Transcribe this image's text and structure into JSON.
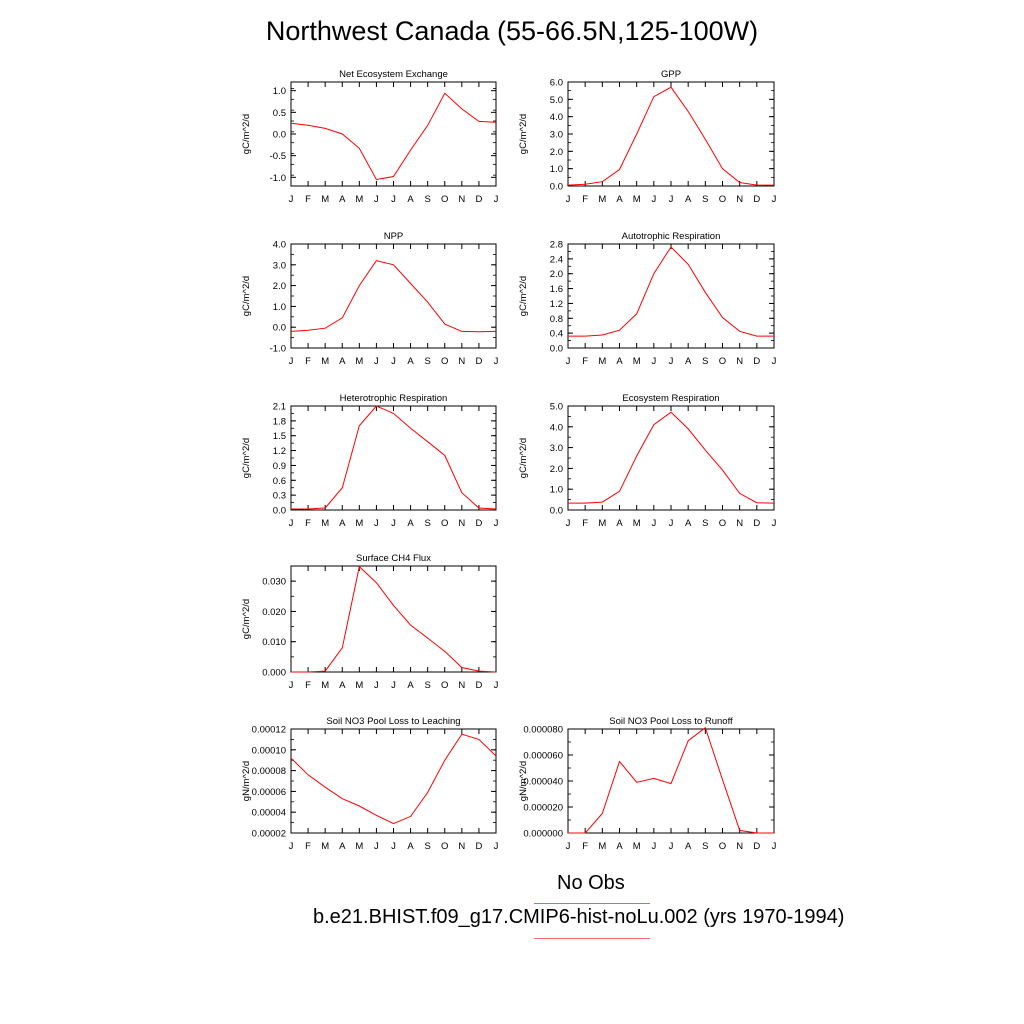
{
  "page": {
    "title": "Northwest Canada (55-66.5N,125-100W)"
  },
  "legend": {
    "items": [
      {
        "label": "No Obs",
        "color": "#7b7bff"
      },
      {
        "label": "b.e21.BHIST.f09_g17.CMIP6-hist-noLu.002 (yrs 1970-1994)",
        "color": "#ff6b6b"
      }
    ]
  },
  "chart_data": [
    {
      "type": "line",
      "title": "Net Ecosystem Exchange",
      "ylabel": "gC/m^2/d",
      "categories": [
        "J",
        "F",
        "M",
        "A",
        "M",
        "J",
        "J",
        "A",
        "S",
        "O",
        "N",
        "D",
        "J"
      ],
      "ylim": [
        -1.2,
        1.2
      ],
      "yticks": [
        "-1.0",
        "-0.5",
        "0.0",
        "0.5",
        "1.0"
      ],
      "series": [
        {
          "values": [
            0.25,
            0.2,
            0.13,
            0.0,
            -0.33,
            -1.05,
            -0.98,
            -0.37,
            0.2,
            0.94,
            0.58,
            0.29,
            0.27
          ],
          "color": "#ff0000"
        }
      ]
    },
    {
      "type": "line",
      "title": "GPP",
      "ylabel": "gC/m^2/d",
      "categories": [
        "J",
        "F",
        "M",
        "A",
        "M",
        "J",
        "J",
        "A",
        "S",
        "O",
        "N",
        "D",
        "J"
      ],
      "ylim": [
        0.0,
        6.0
      ],
      "yticks": [
        "0.0",
        "1.0",
        "2.0",
        "3.0",
        "4.0",
        "5.0",
        "6.0"
      ],
      "series": [
        {
          "values": [
            0.05,
            0.1,
            0.25,
            0.95,
            3.0,
            5.15,
            5.7,
            4.3,
            2.7,
            1.0,
            0.2,
            0.05,
            0.05
          ],
          "color": "#ff0000"
        }
      ]
    },
    {
      "type": "line",
      "title": "NPP",
      "ylabel": "gC/m^2/d",
      "categories": [
        "J",
        "F",
        "M",
        "A",
        "M",
        "J",
        "J",
        "A",
        "S",
        "O",
        "N",
        "D",
        "J"
      ],
      "ylim": [
        -1.0,
        4.0
      ],
      "yticks": [
        "-1.0",
        "0.0",
        "1.0",
        "2.0",
        "3.0",
        "4.0"
      ],
      "series": [
        {
          "values": [
            -0.2,
            -0.15,
            -0.05,
            0.45,
            2.0,
            3.2,
            3.0,
            2.1,
            1.2,
            0.15,
            -0.2,
            -0.22,
            -0.2
          ],
          "color": "#ff0000"
        }
      ]
    },
    {
      "type": "line",
      "title": "Autotrophic Respiration",
      "ylabel": "gC/m^2/d",
      "categories": [
        "J",
        "F",
        "M",
        "A",
        "M",
        "J",
        "J",
        "A",
        "S",
        "O",
        "N",
        "D",
        "J"
      ],
      "ylim": [
        0.0,
        2.8
      ],
      "yticks": [
        "0.0",
        "0.4",
        "0.8",
        "1.2",
        "1.6",
        "2.0",
        "2.4",
        "2.8"
      ],
      "series": [
        {
          "values": [
            0.32,
            0.32,
            0.35,
            0.48,
            0.92,
            2.0,
            2.72,
            2.25,
            1.5,
            0.82,
            0.45,
            0.32,
            0.32
          ],
          "color": "#ff0000"
        }
      ]
    },
    {
      "type": "line",
      "title": "Heterotrophic Respiration",
      "ylabel": "gC/m^2/d",
      "categories": [
        "J",
        "F",
        "M",
        "A",
        "M",
        "J",
        "J",
        "A",
        "S",
        "O",
        "N",
        "D",
        "J"
      ],
      "ylim": [
        0.0,
        2.1
      ],
      "yticks": [
        "0.0",
        "0.3",
        "0.6",
        "0.9",
        "1.2",
        "1.5",
        "1.8",
        "2.1"
      ],
      "series": [
        {
          "values": [
            0.02,
            0.02,
            0.04,
            0.45,
            1.7,
            2.1,
            1.95,
            1.65,
            1.38,
            1.1,
            0.35,
            0.04,
            0.02
          ],
          "color": "#ff0000"
        }
      ]
    },
    {
      "type": "line",
      "title": "Ecosystem Respiration",
      "ylabel": "gC/m^2/d",
      "categories": [
        "J",
        "F",
        "M",
        "A",
        "M",
        "J",
        "J",
        "A",
        "S",
        "O",
        "N",
        "D",
        "J"
      ],
      "ylim": [
        0.0,
        5.0
      ],
      "yticks": [
        "0.0",
        "1.0",
        "2.0",
        "3.0",
        "4.0",
        "5.0"
      ],
      "series": [
        {
          "values": [
            0.33,
            0.33,
            0.38,
            0.9,
            2.6,
            4.1,
            4.7,
            3.9,
            2.88,
            1.92,
            0.8,
            0.35,
            0.33
          ],
          "color": "#ff0000"
        }
      ]
    },
    {
      "type": "line",
      "title": "Surface CH4 Flux",
      "ylabel": "gC/m^2/d",
      "categories": [
        "J",
        "F",
        "M",
        "A",
        "M",
        "J",
        "J",
        "A",
        "S",
        "O",
        "N",
        "D",
        "J"
      ],
      "ylim": [
        0.0,
        0.035
      ],
      "yticks": [
        "0.000",
        "0.010",
        "0.020",
        "0.030"
      ],
      "series": [
        {
          "values": [
            0.0,
            0.0,
            0.0003,
            0.008,
            0.0348,
            0.0295,
            0.022,
            0.0155,
            0.0112,
            0.0068,
            0.0015,
            0.0003,
            0.0
          ],
          "color": "#ff0000"
        }
      ]
    },
    {
      "type": "line",
      "title": "Soil NO3 Pool Loss to Leaching",
      "ylabel": "gN/m^2/d",
      "categories": [
        "J",
        "F",
        "M",
        "A",
        "M",
        "J",
        "J",
        "A",
        "S",
        "O",
        "N",
        "D",
        "J"
      ],
      "ylim": [
        2e-05,
        0.00012
      ],
      "yticks": [
        "0.00002",
        "0.00004",
        "0.00006",
        "0.00008",
        "0.00010",
        "0.00012"
      ],
      "series": [
        {
          "values": [
            9.2e-05,
            7.6e-05,
            6.4e-05,
            5.3e-05,
            4.6e-05,
            3.7e-05,
            2.9e-05,
            3.6e-05,
            5.9e-05,
            9e-05,
            0.000115,
            0.00011,
            9.4e-05
          ],
          "color": "#ff0000"
        }
      ]
    },
    {
      "type": "line",
      "title": "Soil NO3 Pool Loss to Runoff",
      "ylabel": "gN/m^2/d",
      "categories": [
        "J",
        "F",
        "M",
        "A",
        "M",
        "J",
        "J",
        "A",
        "S",
        "O",
        "N",
        "D",
        "J"
      ],
      "ylim": [
        0.0,
        8e-05
      ],
      "yticks": [
        "0.000000",
        "0.000020",
        "0.000040",
        "0.000060",
        "0.000080"
      ],
      "series": [
        {
          "values": [
            0.0,
            0.0,
            1.5e-05,
            5.5e-05,
            3.9e-05,
            4.2e-05,
            3.8e-05,
            7.1e-05,
            8.1e-05,
            4.1e-05,
            2e-06,
            0.0,
            0.0
          ],
          "color": "#ff0000"
        }
      ]
    }
  ]
}
